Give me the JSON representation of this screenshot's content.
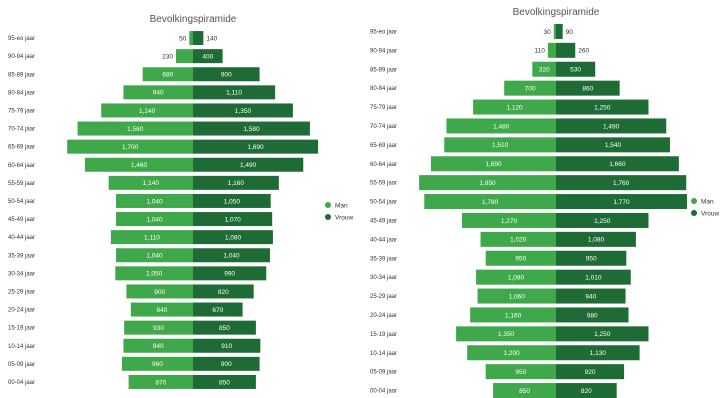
{
  "chart_data": [
    {
      "type": "bar",
      "orientation": "horizontal-pyramid",
      "title": "Bevolkingspiramide",
      "categories": [
        "95-eo jaar",
        "90-94 jaar",
        "85-89 jaar",
        "80-84 jaar",
        "75-79 jaar",
        "70-74 jaar",
        "65-69 jaar",
        "60-64 jaar",
        "55-59 jaar",
        "50-54 jaar",
        "45-49 jaar",
        "40-44 jaar",
        "35-39 jaar",
        "30-34 jaar",
        "25-29 jaar",
        "20-24 jaar",
        "15-19 jaar",
        "10-14 jaar",
        "05-09 jaar",
        "00-04 jaar"
      ],
      "series": [
        {
          "name": "Man",
          "color": "#3fa84a",
          "values": [
            50,
            230,
            680,
            940,
            1240,
            1560,
            1700,
            1460,
            1140,
            1040,
            1040,
            1110,
            1040,
            1050,
            900,
            840,
            930,
            940,
            960,
            870
          ]
        },
        {
          "name": "Vrouw",
          "color": "#1f6b35",
          "values": [
            140,
            400,
            900,
            1110,
            1350,
            1580,
            1690,
            1490,
            1160,
            1050,
            1070,
            1080,
            1040,
            990,
            820,
            670,
            850,
            910,
            900,
            850
          ]
        }
      ],
      "legend": {
        "position": "right",
        "items": [
          "Man",
          "Vrouw"
        ]
      }
    },
    {
      "type": "bar",
      "orientation": "horizontal-pyramid",
      "title": "Bevolkingspiramide",
      "categories": [
        "95-eo jaar",
        "90-94 jaar",
        "85-89 jaar",
        "80-84 jaar",
        "75-79 jaar",
        "70-74 jaar",
        "65-69 jaar",
        "60-64 jaar",
        "55-59 jaar",
        "50-54 jaar",
        "45-49 jaar",
        "40-44 jaar",
        "35-39 jaar",
        "30-34 jaar",
        "25-29 jaar",
        "20-24 jaar",
        "15-19 jaar",
        "10-14 jaar",
        "05-09 jaar",
        "00-04 jaar"
      ],
      "series": [
        {
          "name": "Man",
          "color": "#3fa84a",
          "values": [
            30,
            110,
            320,
            700,
            1120,
            1480,
            1510,
            1690,
            1850,
            1780,
            1270,
            1020,
            950,
            1080,
            1060,
            1160,
            1350,
            1200,
            950,
            850
          ]
        },
        {
          "name": "Vrouw",
          "color": "#1f6b35",
          "values": [
            90,
            260,
            530,
            860,
            1250,
            1490,
            1540,
            1660,
            1760,
            1770,
            1250,
            1080,
            950,
            1010,
            940,
            980,
            1250,
            1130,
            920,
            820
          ]
        }
      ],
      "legend": {
        "position": "right",
        "items": [
          "Man",
          "Vrouw"
        ]
      }
    }
  ]
}
